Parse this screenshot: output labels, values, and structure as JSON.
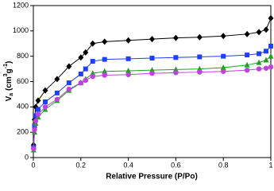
{
  "chart_data": {
    "type": "line",
    "x_label": "Relative Pressure (P/Po)",
    "y_label_parts": [
      "V",
      "a",
      " (cm",
      "3",
      "g",
      "-1",
      ")"
    ],
    "x": [
      0.001,
      0.005,
      0.01,
      0.02,
      0.05,
      0.1,
      0.15,
      0.2,
      0.22,
      0.25,
      0.3,
      0.4,
      0.5,
      0.6,
      0.7,
      0.8,
      0.9,
      0.95,
      0.98,
      1.0
    ],
    "series": [
      {
        "color": "#000000",
        "marker": "diamond",
        "values": [
          100,
          300,
          400,
          450,
          530,
          620,
          720,
          790,
          830,
          900,
          915,
          925,
          935,
          945,
          950,
          960,
          975,
          990,
          1010,
          1100
        ]
      },
      {
        "color": "#1f3fff",
        "marker": "square",
        "values": [
          80,
          250,
          330,
          380,
          440,
          510,
          590,
          660,
          700,
          760,
          775,
          780,
          785,
          790,
          795,
          800,
          810,
          820,
          840,
          880
        ]
      },
      {
        "color": "#22a022",
        "marker": "triangle",
        "values": [
          60,
          200,
          270,
          320,
          380,
          450,
          530,
          590,
          620,
          665,
          680,
          685,
          690,
          695,
          700,
          710,
          730,
          750,
          770,
          800
        ]
      },
      {
        "color": "#c040e0",
        "marker": "circle",
        "values": [
          70,
          220,
          290,
          340,
          400,
          460,
          540,
          590,
          610,
          640,
          650,
          655,
          665,
          670,
          675,
          680,
          690,
          700,
          705,
          715
        ]
      }
    ],
    "xlim": [
      0,
      1
    ],
    "xticks": [
      0,
      0.2,
      0.4,
      0.6,
      0.8,
      1
    ],
    "ylim": [
      0,
      1200
    ],
    "yticks": [
      0,
      200,
      400,
      600,
      800,
      1000,
      1200
    ]
  }
}
